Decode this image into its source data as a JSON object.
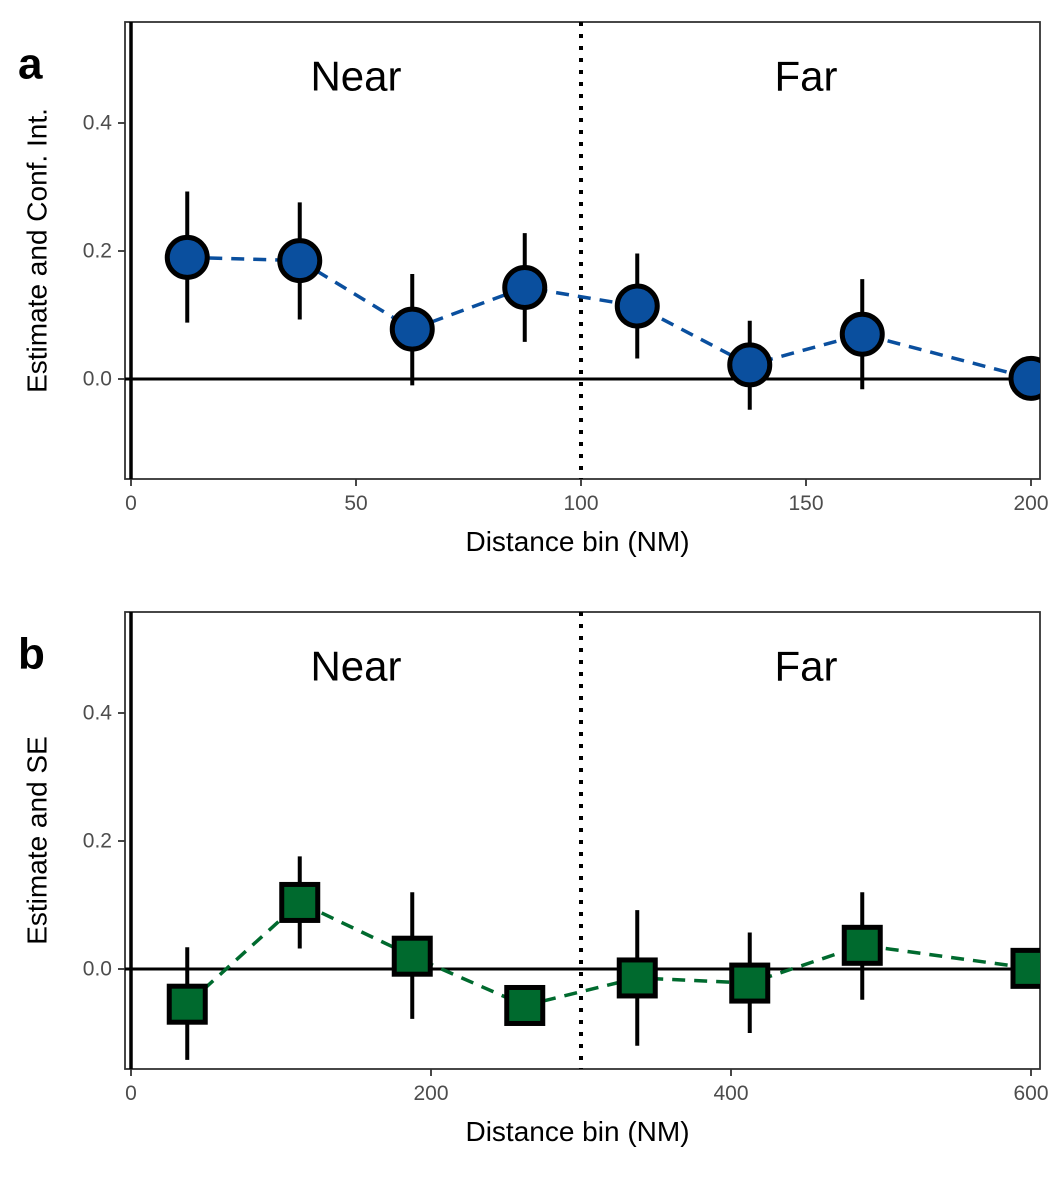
{
  "chart_data": [
    {
      "panel_label": "a",
      "type": "scatter",
      "marker": "circle",
      "color": "#0a4f9e",
      "xlabel": "Distance bin (NM)",
      "ylabel": "Estimate and Conf. Int.",
      "xlim": [
        0,
        200
      ],
      "ylim": [
        -0.16,
        0.56
      ],
      "xticks": [
        {
          "value": 0,
          "label": "0"
        },
        {
          "value": 50,
          "label": "50"
        },
        {
          "value": 100,
          "label": "100"
        },
        {
          "value": 150,
          "label": "150"
        },
        {
          "value": 200,
          "label": "200"
        }
      ],
      "yticks": [
        {
          "value": 0.0,
          "label": "0.0"
        },
        {
          "value": 0.2,
          "label": "0.2"
        },
        {
          "value": 0.4,
          "label": "0.4"
        }
      ],
      "divider_x": 100,
      "regions": [
        {
          "label": "Near",
          "x": 50
        },
        {
          "label": "Far",
          "x": 150
        }
      ],
      "points": [
        {
          "x": 12.5,
          "y": 0.19,
          "lo": 0.088,
          "hi": 0.293
        },
        {
          "x": 37.5,
          "y": 0.185,
          "lo": 0.093,
          "hi": 0.276
        },
        {
          "x": 62.5,
          "y": 0.078,
          "lo": -0.01,
          "hi": 0.164
        },
        {
          "x": 87.5,
          "y": 0.143,
          "lo": 0.058,
          "hi": 0.228
        },
        {
          "x": 112.5,
          "y": 0.114,
          "lo": 0.032,
          "hi": 0.196
        },
        {
          "x": 137.5,
          "y": 0.022,
          "lo": -0.048,
          "hi": 0.091
        },
        {
          "x": 162.5,
          "y": 0.07,
          "lo": -0.016,
          "hi": 0.156
        },
        {
          "x": 200,
          "y": 0.001,
          "lo": 0.001,
          "hi": 0.001
        }
      ]
    },
    {
      "panel_label": "b",
      "type": "scatter",
      "marker": "square",
      "color": "#006a2e",
      "xlabel": "Distance bin (NM)",
      "ylabel": "Estimate and SE",
      "xlim": [
        0,
        600
      ],
      "ylim": [
        -0.16,
        0.56
      ],
      "xticks": [
        {
          "value": 0,
          "label": "0"
        },
        {
          "value": 200,
          "label": "200"
        },
        {
          "value": 400,
          "label": "400"
        },
        {
          "value": 600,
          "label": "600"
        }
      ],
      "yticks": [
        {
          "value": 0.0,
          "label": "0.0"
        },
        {
          "value": 0.2,
          "label": "0.2"
        },
        {
          "value": 0.4,
          "label": "0.4"
        }
      ],
      "divider_x": 300,
      "regions": [
        {
          "label": "Near",
          "x": 150
        },
        {
          "label": "Far",
          "x": 450
        }
      ],
      "points": [
        {
          "x": 37.5,
          "y": -0.055,
          "lo": -0.142,
          "hi": 0.034
        },
        {
          "x": 112.5,
          "y": 0.104,
          "lo": 0.032,
          "hi": 0.176
        },
        {
          "x": 187.5,
          "y": 0.02,
          "lo": -0.078,
          "hi": 0.12
        },
        {
          "x": 262.5,
          "y": -0.057,
          "lo": -0.057,
          "hi": -0.057
        },
        {
          "x": 337.5,
          "y": -0.014,
          "lo": -0.12,
          "hi": 0.092
        },
        {
          "x": 412.5,
          "y": -0.022,
          "lo": -0.1,
          "hi": 0.057
        },
        {
          "x": 487.5,
          "y": 0.037,
          "lo": -0.048,
          "hi": 0.12
        },
        {
          "x": 600,
          "y": 0.001,
          "lo": 0.001,
          "hi": 0.001
        }
      ]
    }
  ]
}
